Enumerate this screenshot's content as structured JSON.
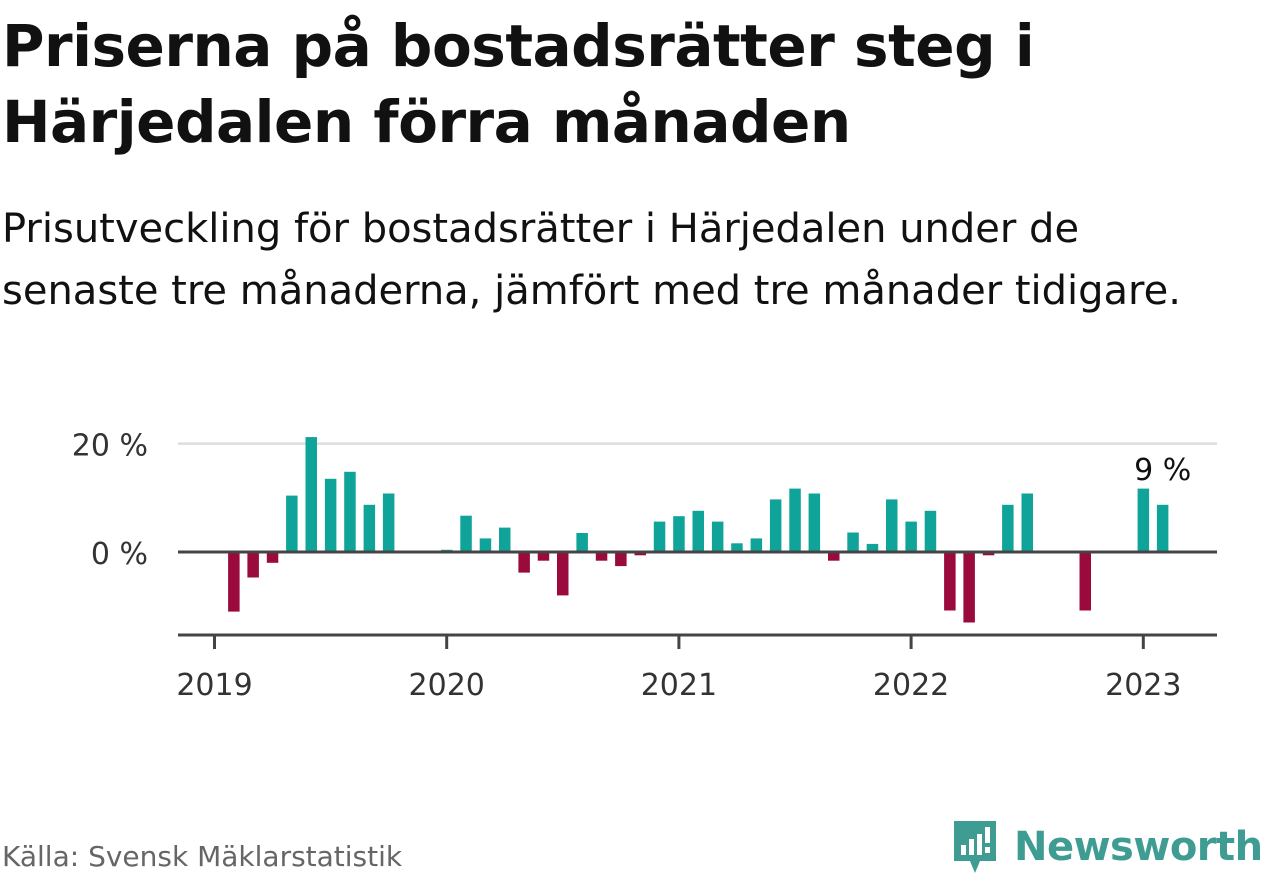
{
  "title": "Priserna på bostadsrätter steg i Härjedalen förra månaden",
  "subtitle": "Prisutveckling för bostadsrätter i Härjedalen under de senaste tre månaderna, jämfört med tre månader tidigare.",
  "source": "Källa: Svensk Mäklarstatistik",
  "brand": {
    "name": "Newsworthy",
    "color": "#3f9c92",
    "icon": "newsworthy-logo-icon"
  },
  "colors": {
    "positive": "#0fa39a",
    "negative": "#9b0a3c",
    "zero_line": "#444444",
    "grid": "#dddddd",
    "axis_text": "#333333"
  },
  "chart_data": {
    "type": "bar",
    "y_ticks": [
      {
        "value": 0,
        "label": "0 %"
      },
      {
        "value": 20,
        "label": "20 %"
      }
    ],
    "x_ticks": [
      {
        "year": 2019,
        "label": "2019"
      },
      {
        "year": 2020,
        "label": "2020"
      },
      {
        "year": 2021,
        "label": "2021"
      },
      {
        "year": 2022,
        "label": "2022"
      },
      {
        "year": 2023,
        "label": "2023"
      }
    ],
    "ylim": [
      -15,
      20
    ],
    "grid": true,
    "annotation": {
      "label": "9 %",
      "date": "2023-02"
    },
    "series": [
      {
        "values": [
          {
            "date": "2019-02",
            "value": -11
          },
          {
            "date": "2019-03",
            "value": -4.7
          },
          {
            "date": "2019-04",
            "value": -2
          },
          {
            "date": "2019-05",
            "value": 10.4
          },
          {
            "date": "2019-06",
            "value": 21.2
          },
          {
            "date": "2019-07",
            "value": 13.5
          },
          {
            "date": "2019-08",
            "value": 14.8
          },
          {
            "date": "2019-09",
            "value": 8.7
          },
          {
            "date": "2019-10",
            "value": 10.8
          },
          {
            "date": "2020-01",
            "value": 0.4
          },
          {
            "date": "2020-02",
            "value": 6.7
          },
          {
            "date": "2020-03",
            "value": 2.5
          },
          {
            "date": "2020-04",
            "value": 4.5
          },
          {
            "date": "2020-05",
            "value": -3.8
          },
          {
            "date": "2020-06",
            "value": -1.6
          },
          {
            "date": "2020-07",
            "value": -8
          },
          {
            "date": "2020-08",
            "value": 3.5
          },
          {
            "date": "2020-09",
            "value": -1.6
          },
          {
            "date": "2020-10",
            "value": -2.6
          },
          {
            "date": "2020-11",
            "value": -0.6
          },
          {
            "date": "2020-12",
            "value": 5.6
          },
          {
            "date": "2021-01",
            "value": 6.6
          },
          {
            "date": "2021-02",
            "value": 7.6
          },
          {
            "date": "2021-03",
            "value": 5.6
          },
          {
            "date": "2021-04",
            "value": 1.6
          },
          {
            "date": "2021-05",
            "value": 2.5
          },
          {
            "date": "2021-06",
            "value": 9.7
          },
          {
            "date": "2021-07",
            "value": 11.7
          },
          {
            "date": "2021-08",
            "value": 10.8
          },
          {
            "date": "2021-09",
            "value": -1.6
          },
          {
            "date": "2021-10",
            "value": 3.6
          },
          {
            "date": "2021-11",
            "value": 1.5
          },
          {
            "date": "2021-12",
            "value": 9.7
          },
          {
            "date": "2022-01",
            "value": 5.6
          },
          {
            "date": "2022-02",
            "value": 7.6
          },
          {
            "date": "2022-03",
            "value": -10.8
          },
          {
            "date": "2022-04",
            "value": -13
          },
          {
            "date": "2022-05",
            "value": -0.6
          },
          {
            "date": "2022-06",
            "value": 8.7
          },
          {
            "date": "2022-07",
            "value": 10.8
          },
          {
            "date": "2022-10",
            "value": -10.8
          },
          {
            "date": "2023-01",
            "value": 11.7
          },
          {
            "date": "2023-02",
            "value": 8.7
          }
        ]
      }
    ]
  }
}
